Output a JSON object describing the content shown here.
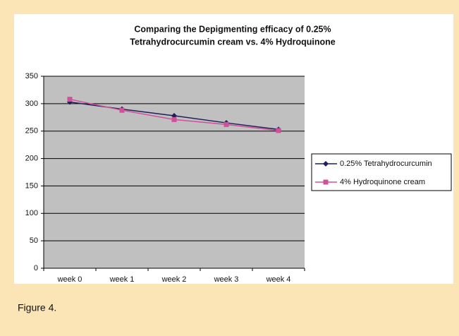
{
  "chart_data": {
    "type": "line",
    "title": [
      "Comparing the Depigmenting efficacy of 0.25%",
      "Tetrahydrocurcumin cream vs. 4% Hydroquinone"
    ],
    "categories": [
      "week 0",
      "week 1",
      "week 2",
      "week 3",
      "week 4"
    ],
    "series": [
      {
        "name": "0.25% Tetrahydrocurcumin",
        "color": "#1f1f5c",
        "values": [
          303,
          290,
          278,
          265,
          253
        ]
      },
      {
        "name": "4% Hydroquinone cream",
        "color": "#d0509a",
        "values": [
          308,
          288,
          271,
          262,
          251
        ]
      }
    ],
    "ylim": [
      0,
      350
    ],
    "yticks": [
      0,
      50,
      100,
      150,
      200,
      250,
      300,
      350
    ],
    "grid": true,
    "legend": "right"
  },
  "caption": "Figure 4."
}
